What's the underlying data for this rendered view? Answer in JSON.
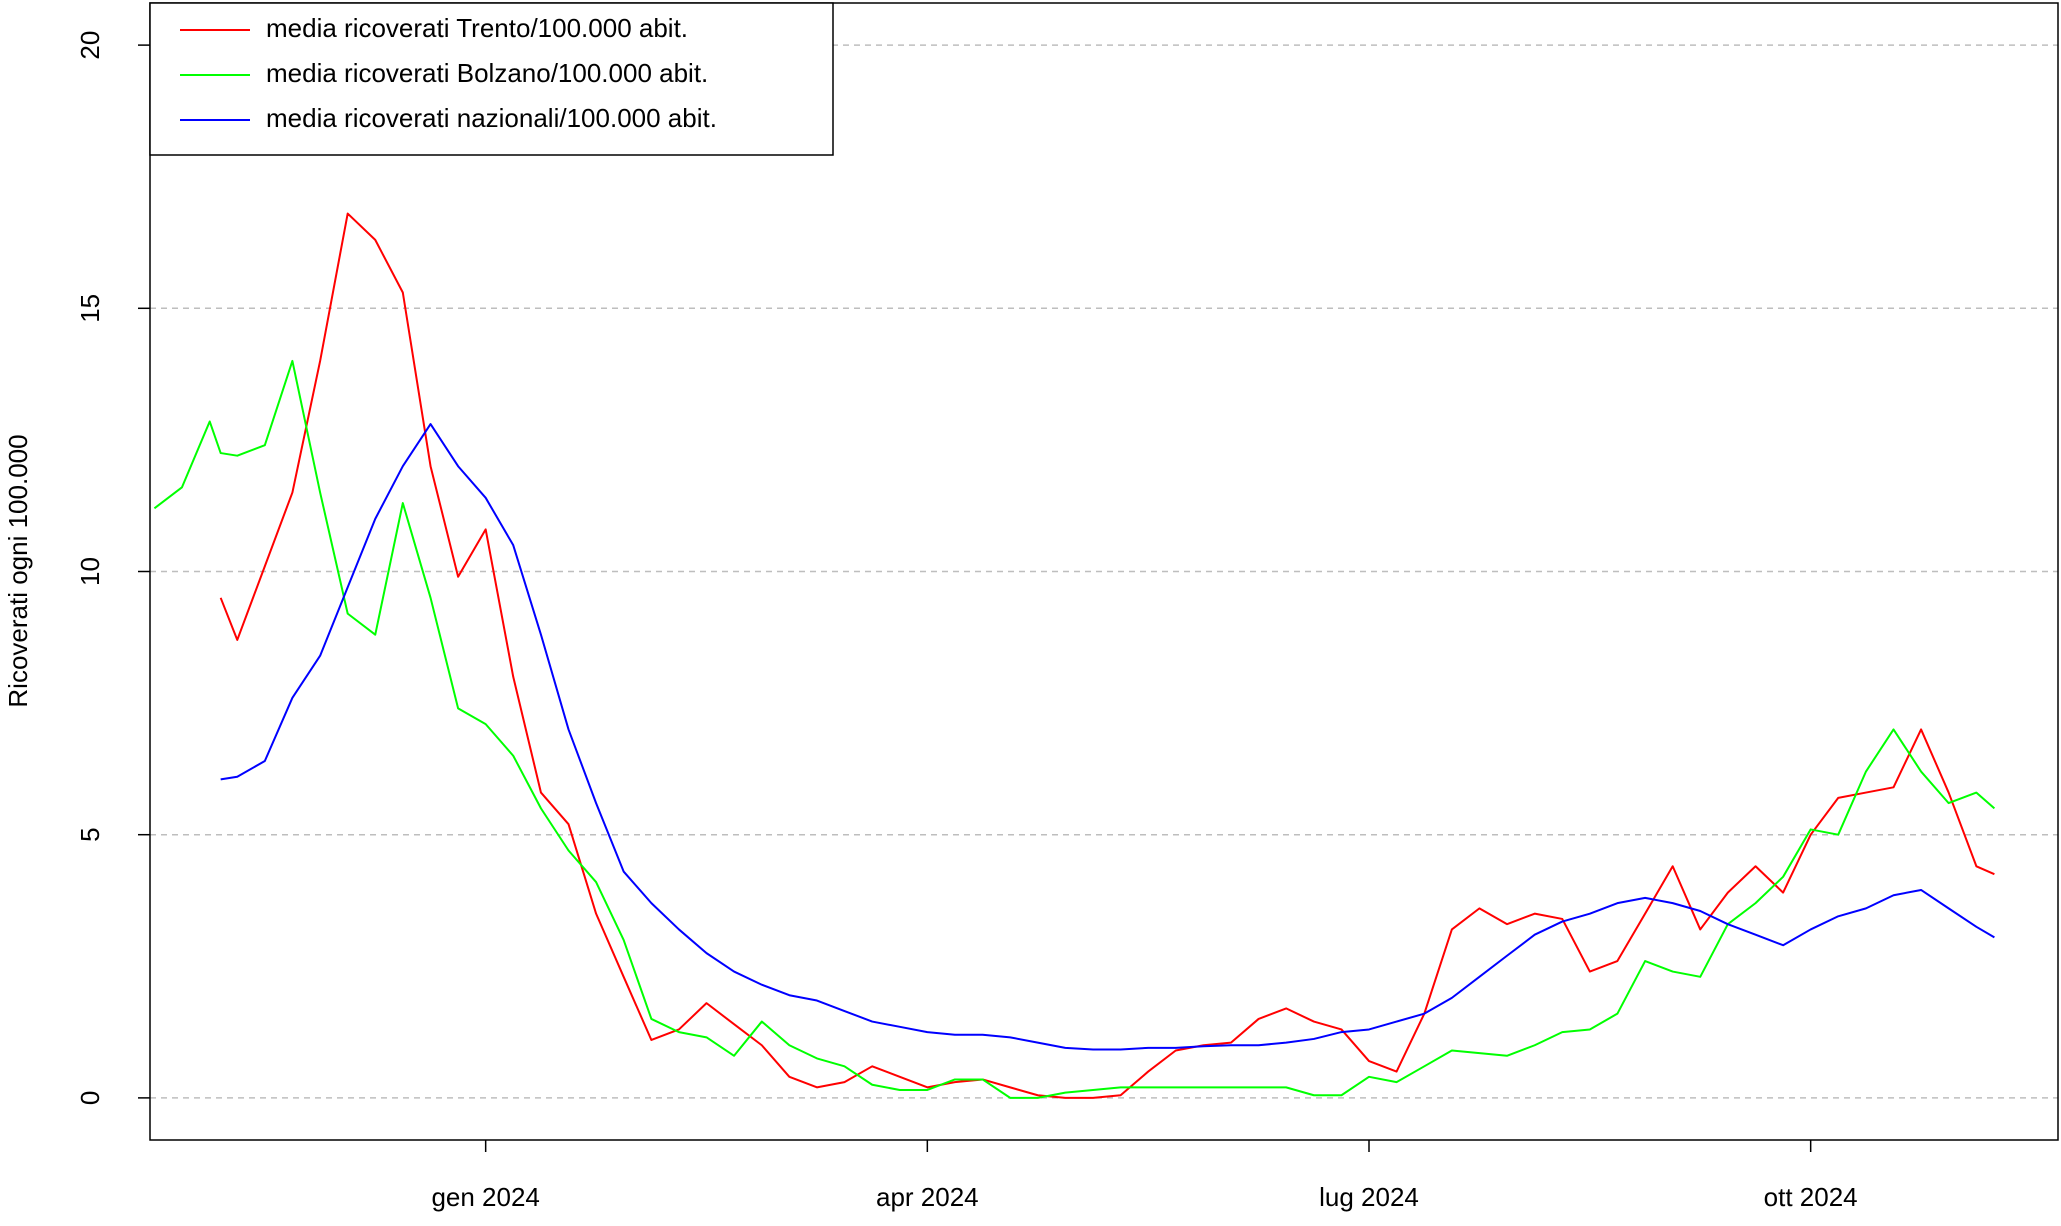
{
  "chart_data": {
    "type": "line",
    "y_label": "Ricoverati ogni 100.000",
    "x": [
      2023.8125,
      2023.8281,
      2023.8438,
      2023.85,
      2023.8594,
      2023.875,
      2023.8906,
      2023.9063,
      2023.9219,
      2023.9375,
      2023.9531,
      2023.9688,
      2023.9844,
      2024,
      2024.0156,
      2024.0313,
      2024.0469,
      2024.0625,
      2024.0781,
      2024.0938,
      2024.1094,
      2024.125,
      2024.1406,
      2024.1563,
      2024.1719,
      2024.1875,
      2024.2031,
      2024.2188,
      2024.2344,
      2024.25,
      2024.2656,
      2024.2813,
      2024.2969,
      2024.3125,
      2024.3281,
      2024.3438,
      2024.3594,
      2024.375,
      2024.3906,
      2024.4063,
      2024.4219,
      2024.4375,
      2024.4531,
      2024.4688,
      2024.4844,
      2024.5,
      2024.5156,
      2024.5313,
      2024.5469,
      2024.5625,
      2024.5781,
      2024.5938,
      2024.6094,
      2024.625,
      2024.6406,
      2024.6563,
      2024.6719,
      2024.6875,
      2024.7031,
      2024.7188,
      2024.7344,
      2024.75,
      2024.7656,
      2024.7813,
      2024.7969,
      2024.8125,
      2024.8281,
      2024.8438,
      2024.854
    ],
    "series": [
      {
        "name": "media ricoverati Trento/100.000 abit.",
        "color": "#ff0000",
        "values": [
          null,
          null,
          null,
          9.5,
          8.7,
          10.1,
          11.5,
          14.0,
          16.8,
          16.3,
          15.3,
          12.0,
          9.9,
          10.8,
          8.0,
          5.8,
          5.2,
          3.5,
          2.3,
          1.1,
          1.3,
          1.8,
          1.4,
          1.0,
          0.4,
          0.2,
          0.3,
          0.6,
          0.4,
          0.2,
          0.3,
          0.35,
          0.2,
          0.05,
          0.0,
          0.0,
          0.05,
          0.5,
          0.9,
          1.0,
          1.05,
          1.5,
          1.7,
          1.45,
          1.3,
          0.7,
          0.5,
          1.6,
          3.2,
          3.6,
          3.3,
          3.5,
          3.4,
          2.4,
          2.6,
          3.5,
          4.4,
          3.2,
          3.9,
          4.4,
          3.9,
          5.0,
          5.7,
          5.8,
          5.9,
          7.0,
          5.8,
          4.4,
          4.25
        ]
      },
      {
        "name": "media ricoverati Bolzano/100.000 abit.",
        "color": "#00ff00",
        "values": [
          11.2,
          11.6,
          12.85,
          12.25,
          12.2,
          12.4,
          14.0,
          11.5,
          9.2,
          8.8,
          11.3,
          9.5,
          7.4,
          7.1,
          6.5,
          5.5,
          4.7,
          4.1,
          3.0,
          1.5,
          1.25,
          1.15,
          0.8,
          1.45,
          1.0,
          0.75,
          0.6,
          0.25,
          0.15,
          0.15,
          0.35,
          0.35,
          0.0,
          0.0,
          0.1,
          0.15,
          0.2,
          0.2,
          0.2,
          0.2,
          0.2,
          0.2,
          0.2,
          0.05,
          0.05,
          0.4,
          0.3,
          0.6,
          0.9,
          0.85,
          0.8,
          1.0,
          1.25,
          1.3,
          1.6,
          2.6,
          2.4,
          2.3,
          3.3,
          3.7,
          4.2,
          5.1,
          5.0,
          6.2,
          7.0,
          6.2,
          5.6,
          5.8,
          5.5
        ]
      },
      {
        "name": "media ricoverati nazionali/100.000 abit.",
        "color": "#0000ff",
        "values": [
          null,
          null,
          null,
          6.05,
          6.1,
          6.4,
          7.6,
          8.4,
          9.7,
          11.0,
          12.0,
          12.8,
          12.0,
          11.4,
          10.5,
          8.8,
          7.0,
          5.6,
          4.3,
          3.7,
          3.2,
          2.75,
          2.4,
          2.15,
          1.95,
          1.85,
          1.65,
          1.45,
          1.35,
          1.25,
          1.2,
          1.2,
          1.15,
          1.05,
          0.95,
          0.92,
          0.92,
          0.95,
          0.95,
          0.98,
          1.0,
          1.0,
          1.05,
          1.12,
          1.25,
          1.3,
          1.45,
          1.6,
          1.9,
          2.3,
          2.7,
          3.1,
          3.35,
          3.5,
          3.7,
          3.8,
          3.7,
          3.55,
          3.3,
          3.1,
          2.9,
          3.2,
          3.45,
          3.6,
          3.85,
          3.95,
          3.6,
          3.25,
          3.05
        ]
      }
    ],
    "xlim": [
      2023.81,
      2024.89
    ],
    "xticks": [
      {
        "value": 2024,
        "label": "gen 2024"
      },
      {
        "value": 2024.25,
        "label": "apr 2024"
      },
      {
        "value": 2024.5,
        "label": "lug 2024"
      },
      {
        "value": 2024.75,
        "label": "ott 2024"
      }
    ],
    "ylim": [
      -0.8,
      20.8
    ],
    "yticks": [
      0,
      5,
      10,
      15,
      20
    ],
    "grid": true,
    "legend": "topleft"
  }
}
